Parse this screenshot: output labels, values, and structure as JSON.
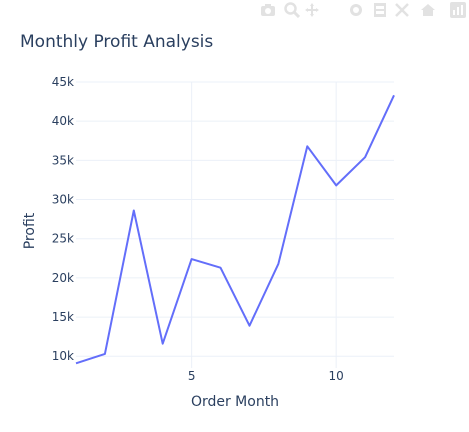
{
  "modebar": {
    "icons": [
      "camera-icon",
      "zoom-icon",
      "pan-icon",
      "lasso-icon",
      "box-select-icon",
      "autoscale-icon",
      "home-icon",
      "plotly-logo-icon"
    ],
    "color": "#e2e2e2"
  },
  "chart_data": {
    "type": "line",
    "title": "Monthly Profit Analysis",
    "xlabel": "Order Month",
    "ylabel": "Profit",
    "x": [
      1,
      2,
      3,
      4,
      5,
      6,
      7,
      8,
      9,
      10,
      11,
      12
    ],
    "y": [
      9100,
      10300,
      28600,
      11600,
      22400,
      21300,
      13900,
      21800,
      36800,
      31800,
      35400,
      43300
    ],
    "xlim": [
      1,
      12
    ],
    "ylim": [
      8500,
      45000
    ],
    "x_ticks": [
      5,
      10
    ],
    "x_tick_labels": [
      "5",
      "10"
    ],
    "y_ticks": [
      10000,
      15000,
      20000,
      25000,
      30000,
      35000,
      40000,
      45000
    ],
    "y_tick_labels": [
      "10k",
      "15k",
      "20k",
      "25k",
      "30k",
      "35k",
      "40k",
      "45k"
    ],
    "grid": true,
    "line_color": "#636efa",
    "grid_color": "#ebf0f8"
  }
}
